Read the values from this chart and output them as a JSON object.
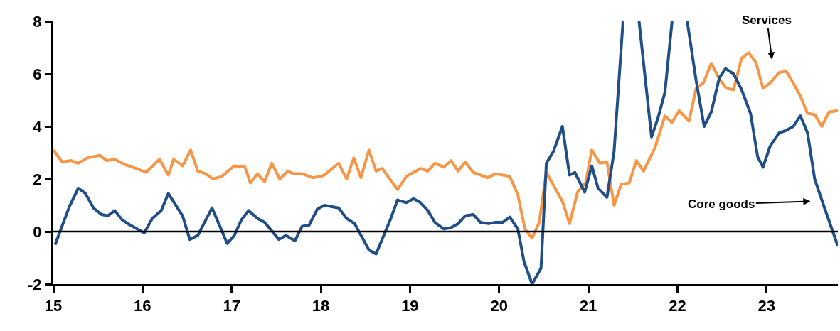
{
  "chart_data": {
    "type": "line",
    "xlim": [
      15,
      23.8
    ],
    "xticks": [
      15,
      16,
      17,
      18,
      19,
      20,
      21,
      22,
      23
    ],
    "ylim": [
      -2,
      8
    ],
    "yticks": [
      -2,
      0,
      2,
      4,
      6,
      8
    ],
    "marker": "none",
    "line_style": "solid",
    "ref_lines": [
      {
        "axis": "y",
        "value": 0,
        "color": "#000000"
      }
    ],
    "annotations": [
      "Services",
      "Core goods"
    ],
    "series": [
      {
        "color": "#f79646",
        "x": [
          15.0,
          15.1,
          15.2,
          15.28,
          15.38,
          15.52,
          15.6,
          15.69,
          15.8,
          15.93,
          16.04,
          16.19,
          16.29,
          16.35,
          16.45,
          16.54,
          16.62,
          16.71,
          16.79,
          16.89,
          17.03,
          17.15,
          17.21,
          17.29,
          17.37,
          17.45,
          17.54,
          17.63,
          17.69,
          17.79,
          17.91,
          18.0,
          18.04,
          18.2,
          18.29,
          18.37,
          18.45,
          18.54,
          18.62,
          18.69,
          18.86,
          18.96,
          19.12,
          19.2,
          19.28,
          19.38,
          19.46,
          19.54,
          19.62,
          19.71,
          19.87,
          19.96,
          20.12,
          20.21,
          20.29,
          20.37,
          20.45,
          20.53,
          20.71,
          20.79,
          20.88,
          20.97,
          21.04,
          21.13,
          21.21,
          21.29,
          21.37,
          21.46,
          21.54,
          21.62,
          21.75,
          21.86,
          21.94,
          22.02,
          22.13,
          22.21,
          22.29,
          22.38,
          22.47,
          22.55,
          22.63,
          22.72,
          22.8,
          22.88,
          22.96,
          23.04,
          23.14,
          23.22,
          23.3,
          23.38,
          23.46,
          23.54,
          23.62,
          23.7,
          23.8
        ],
        "values": [
          3.1,
          2.65,
          2.7,
          2.6,
          2.8,
          2.9,
          2.7,
          2.75,
          2.55,
          2.4,
          2.25,
          2.75,
          2.15,
          2.75,
          2.5,
          3.1,
          2.3,
          2.2,
          2.0,
          2.1,
          2.5,
          2.45,
          1.85,
          2.2,
          1.9,
          2.6,
          2.0,
          2.3,
          2.2,
          2.2,
          2.05,
          2.1,
          2.15,
          2.6,
          2.0,
          2.8,
          2.05,
          3.1,
          2.3,
          2.4,
          1.6,
          2.1,
          2.4,
          2.3,
          2.6,
          2.45,
          2.7,
          2.3,
          2.65,
          2.25,
          2.05,
          2.2,
          2.1,
          1.4,
          0.1,
          -0.25,
          0.35,
          2.25,
          1.15,
          0.3,
          1.5,
          1.85,
          3.1,
          2.6,
          2.65,
          1.0,
          1.8,
          1.85,
          2.7,
          2.3,
          3.2,
          4.4,
          4.15,
          4.6,
          4.2,
          5.45,
          5.65,
          6.4,
          5.8,
          5.45,
          5.4,
          6.6,
          6.8,
          6.45,
          5.45,
          5.65,
          6.05,
          6.1,
          5.65,
          5.15,
          4.5,
          4.45,
          4.0,
          4.55,
          4.6
        ]
      },
      {
        "color": "#1f4e89",
        "x": [
          15.02,
          15.18,
          15.28,
          15.36,
          15.45,
          15.54,
          15.61,
          15.69,
          15.77,
          15.86,
          16.02,
          16.11,
          16.21,
          16.29,
          16.45,
          16.53,
          16.62,
          16.78,
          16.95,
          17.03,
          17.11,
          17.19,
          17.29,
          17.37,
          17.53,
          17.61,
          17.71,
          17.79,
          17.87,
          17.96,
          18.04,
          18.2,
          18.29,
          18.38,
          18.54,
          18.62,
          18.78,
          18.86,
          18.96,
          19.04,
          19.12,
          19.2,
          19.28,
          19.38,
          19.46,
          19.54,
          19.62,
          19.71,
          19.79,
          19.88,
          19.96,
          20.04,
          20.12,
          20.21,
          20.28,
          20.37,
          20.47,
          20.53,
          20.61,
          20.71,
          20.79,
          20.85,
          20.96,
          21.04,
          21.11,
          21.21,
          21.29,
          21.39,
          21.48,
          21.57,
          21.71,
          21.78,
          21.86,
          21.94,
          22.02,
          22.11,
          22.21,
          22.3,
          22.38,
          22.47,
          22.54,
          22.63,
          22.72,
          22.82,
          22.9,
          22.96,
          23.04,
          23.14,
          23.22,
          23.3,
          23.38,
          23.46,
          23.54,
          23.64,
          23.8
        ],
        "values": [
          -0.5,
          0.95,
          1.65,
          1.45,
          0.9,
          0.65,
          0.6,
          0.8,
          0.45,
          0.25,
          -0.05,
          0.5,
          0.8,
          1.45,
          0.6,
          -0.3,
          -0.15,
          0.9,
          -0.45,
          -0.15,
          0.45,
          0.8,
          0.5,
          0.35,
          -0.3,
          -0.15,
          -0.35,
          0.2,
          0.25,
          0.85,
          1.0,
          0.9,
          0.5,
          0.3,
          -0.7,
          -0.85,
          0.45,
          1.2,
          1.1,
          1.25,
          1.1,
          0.8,
          0.35,
          0.1,
          0.15,
          0.3,
          0.6,
          0.65,
          0.35,
          0.3,
          0.35,
          0.35,
          0.55,
          0.1,
          -1.15,
          -2.0,
          -1.4,
          2.6,
          3.05,
          4.0,
          2.15,
          2.25,
          1.5,
          2.5,
          1.65,
          1.3,
          3.05,
          8,
          null,
          8,
          3.6,
          4.3,
          5.3,
          8,
          null,
          8,
          5.75,
          4.0,
          4.55,
          5.85,
          6.2,
          6.0,
          5.4,
          4.5,
          2.85,
          2.45,
          3.25,
          3.75,
          3.85,
          4.0,
          4.4,
          3.75,
          2.0,
          1.0,
          -0.55
        ]
      }
    ]
  }
}
